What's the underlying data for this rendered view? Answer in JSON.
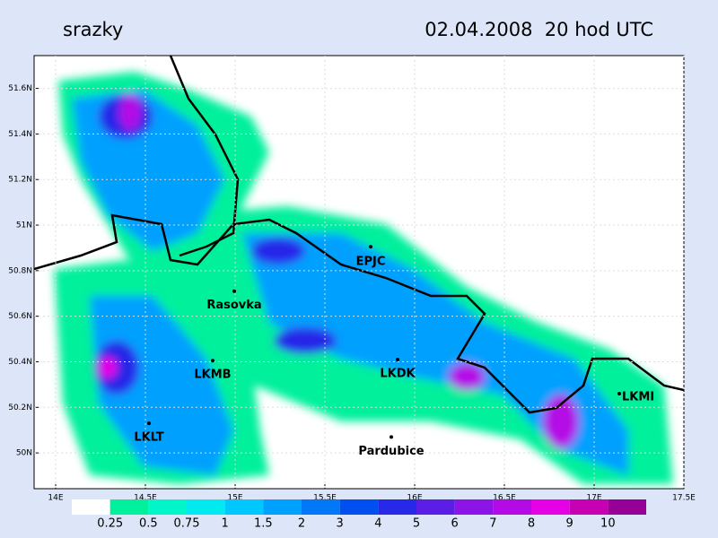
{
  "map": {
    "title": "srazky",
    "subtitle": "02.04.2008  20 hod UTC",
    "xlim": [
      13.88,
      17.5
    ],
    "ylim": [
      49.843,
      51.744
    ],
    "xticks": [
      {
        "value": 14,
        "label": "14E"
      },
      {
        "value": 14.5,
        "label": "14.5E"
      },
      {
        "value": 15,
        "label": "15E"
      },
      {
        "value": 15.5,
        "label": "15.5E"
      },
      {
        "value": 16,
        "label": "16E"
      },
      {
        "value": 16.5,
        "label": "16.5E"
      },
      {
        "value": 17,
        "label": "17E"
      },
      {
        "value": 17.5,
        "label": "17.5E"
      }
    ],
    "yticks": [
      {
        "value": 50,
        "label": "50N"
      },
      {
        "value": 50.2,
        "label": "50.2N"
      },
      {
        "value": 50.4,
        "label": "50.4N"
      },
      {
        "value": 50.6,
        "label": "50.6N"
      },
      {
        "value": 50.8,
        "label": "50.8N"
      },
      {
        "value": 51,
        "label": "51N"
      },
      {
        "value": 51.2,
        "label": "51.2N"
      },
      {
        "value": 51.4,
        "label": "51.4N"
      },
      {
        "value": 51.6,
        "label": "51.6N"
      }
    ],
    "stations": [
      {
        "name": "EPJC",
        "lon": 15.755,
        "lat": 50.905
      },
      {
        "name": "Rasovka",
        "lon": 14.995,
        "lat": 50.71
      },
      {
        "name": "LKMB",
        "lon": 14.875,
        "lat": 50.405
      },
      {
        "name": "LKDK",
        "lon": 15.905,
        "lat": 50.41
      },
      {
        "name": "LKLT",
        "lon": 14.52,
        "lat": 50.13
      },
      {
        "name": "Pardubice",
        "lon": 15.87,
        "lat": 50.07
      },
      {
        "name": "LKMI",
        "lon": 17.14,
        "lat": 50.26
      }
    ],
    "legend": {
      "levels": [
        0.25,
        0.5,
        0.75,
        1,
        1.5,
        2,
        3,
        4,
        5,
        6,
        7,
        8,
        9,
        10
      ],
      "colors": [
        "#ffffff",
        "#00f09c",
        "#00f5c8",
        "#00eaf0",
        "#00c8ff",
        "#00a0ff",
        "#0078f8",
        "#0050f0",
        "#2828e8",
        "#5a1ee6",
        "#8c14e6",
        "#b40ae6",
        "#e600e6",
        "#c800b4",
        "#960096"
      ]
    }
  }
}
